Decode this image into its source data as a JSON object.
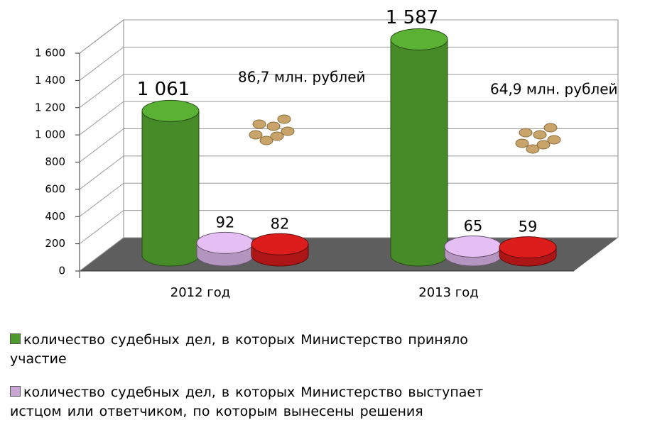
{
  "chart_data": {
    "type": "bar3d",
    "categories": [
      "2012  год",
      "2013  год"
    ],
    "series": [
      {
        "name": "количество  судебных дел,  в  которых   Министерство   приняло участие",
        "color": "#4e9a2c",
        "values": [
          1061,
          1587
        ],
        "value_labels": [
          "1 061",
          "1 587"
        ]
      },
      {
        "name": "количество  судебных  дел,  в  которых  Министерство выступает  истцом  или ответчиком, по которым  вынесены решения",
        "color": "#c7a6d4",
        "values": [
          92,
          65
        ]
      },
      {
        "color": "#c01818",
        "values": [
          82,
          59
        ]
      }
    ],
    "annotations": [
      "86,7 млн. рублей",
      "64,9  млн. рублей"
    ],
    "ylim": [
      0,
      1600
    ],
    "yticks": [
      0,
      200,
      400,
      600,
      800,
      {
        "value": 1000,
        "label": "1 000"
      },
      {
        "value": 1200,
        "label": "1 200"
      },
      {
        "value": 1400,
        "label": "1 400"
      },
      {
        "value": 1600,
        "label": "1 600"
      }
    ],
    "grid": true
  }
}
